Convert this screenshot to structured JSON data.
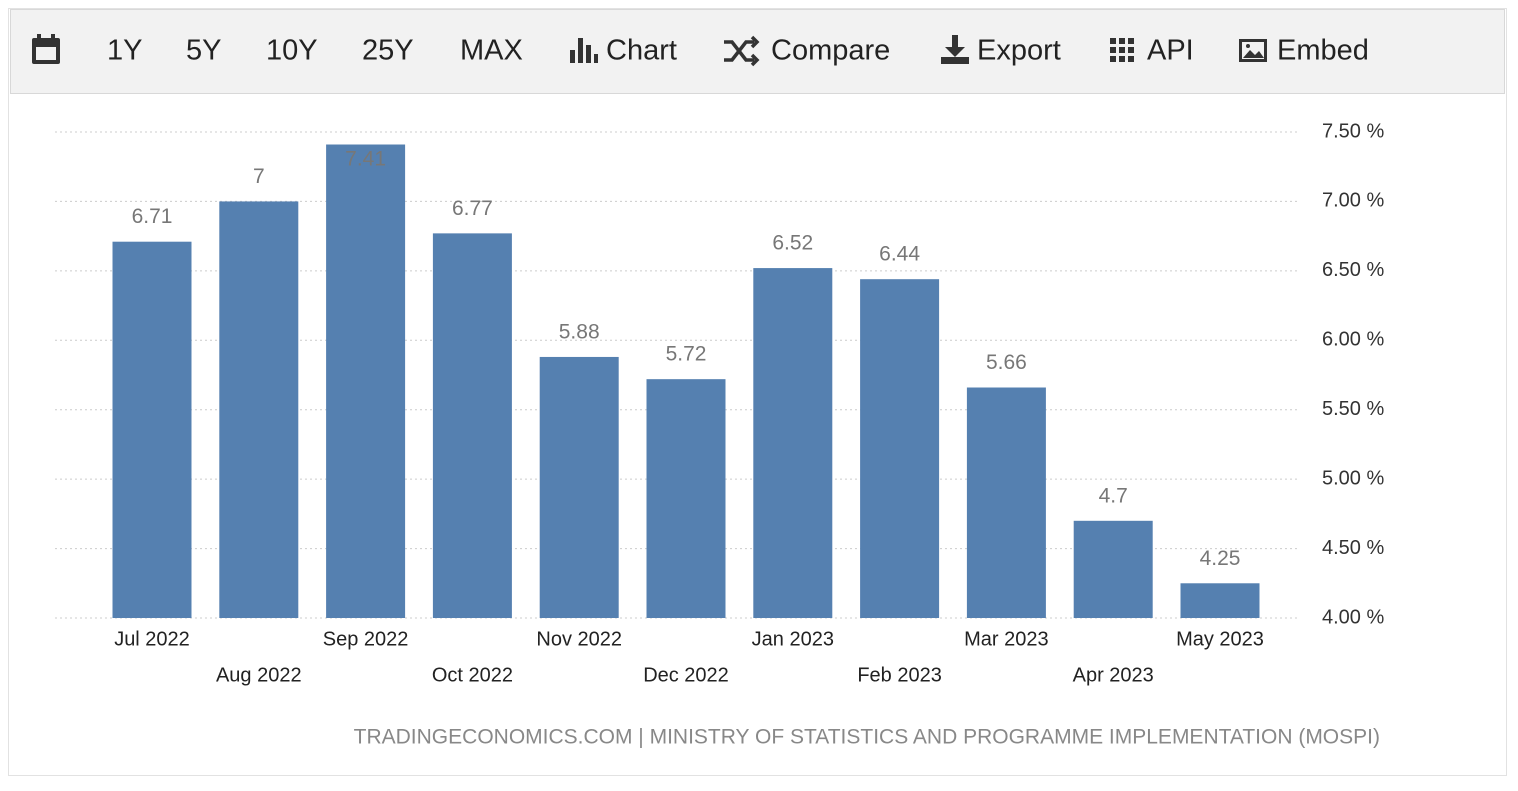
{
  "toolbar": {
    "ranges": [
      "1Y",
      "5Y",
      "10Y",
      "25Y",
      "MAX"
    ],
    "actions": [
      "Chart",
      "Compare",
      "Export",
      "API",
      "Embed"
    ]
  },
  "chart_data": {
    "type": "bar",
    "source": "TRADINGECONOMICS.COM | MINISTRY OF STATISTICS AND PROGRAMME IMPLEMENTATION (MOSPI)",
    "categories": [
      "Jul 2022",
      "Aug 2022",
      "Sep 2022",
      "Oct 2022",
      "Nov 2022",
      "Dec 2022",
      "Jan 2023",
      "Feb 2023",
      "Mar 2023",
      "Apr 2023",
      "May 2023"
    ],
    "values": [
      6.71,
      7,
      7.41,
      6.77,
      5.88,
      5.72,
      6.52,
      6.44,
      5.66,
      4.7,
      4.25
    ],
    "color": "#5580b0",
    "ylim": [
      4,
      7.5
    ],
    "yticks": [
      {
        "value": 4,
        "label": "4.00 %"
      },
      {
        "value": 4.5,
        "label": "4.50 %"
      },
      {
        "value": 5,
        "label": "5.00 %"
      },
      {
        "value": 5.5,
        "label": "5.50 %"
      },
      {
        "value": 6,
        "label": "6.00 %"
      },
      {
        "value": 6.5,
        "label": "6.50 %"
      },
      {
        "value": 7,
        "label": "7.00 %"
      },
      {
        "value": 7.5,
        "label": "7.50 %"
      }
    ],
    "grid": true
  }
}
